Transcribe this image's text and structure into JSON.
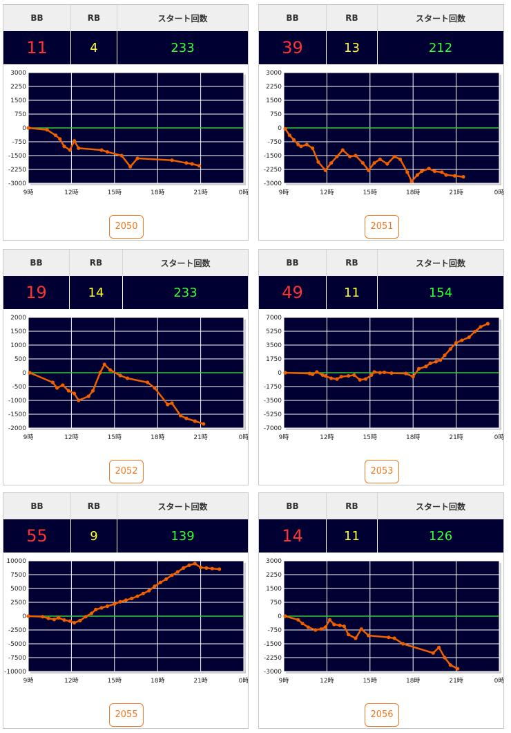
{
  "headers": {
    "bb": "BB",
    "rb": "RB",
    "start": "スタート回数"
  },
  "style": {
    "background": "#000033",
    "grid": "#ffffff",
    "zero_line": "#33cc33",
    "line": "#f06000",
    "bb_color": "#ff3333",
    "rb_color": "#ffff33",
    "start_color": "#33ff33",
    "button_color": "#f07820"
  },
  "machines": [
    {
      "bb": "11",
      "rb": "4",
      "start": "233",
      "machine": "2050"
    },
    {
      "bb": "39",
      "rb": "13",
      "start": "212",
      "machine": "2051"
    },
    {
      "bb": "19",
      "rb": "14",
      "start": "233",
      "machine": "2052"
    },
    {
      "bb": "49",
      "rb": "11",
      "start": "154",
      "machine": "2053"
    },
    {
      "bb": "55",
      "rb": "9",
      "start": "139",
      "machine": "2055"
    },
    {
      "bb": "14",
      "rb": "11",
      "start": "126",
      "machine": "2056"
    }
  ],
  "chart_data": [
    {
      "type": "line",
      "machine": "2050",
      "xlim": [
        9,
        24
      ],
      "ylim": [
        -3000,
        3000
      ],
      "x_ticks": [
        "9時",
        "12時",
        "15時",
        "18時",
        "21時",
        "0時"
      ],
      "y_ticks": [
        "3000",
        "2250",
        "1500",
        "750",
        "0",
        "-750",
        "-1500",
        "-2250",
        "-3000"
      ],
      "x": [
        9.0,
        10.3,
        10.9,
        11.2,
        11.5,
        11.9,
        12.2,
        12.5,
        14.1,
        14.5,
        15.5,
        16.1,
        16.6,
        19.0,
        20.0,
        20.4,
        20.9
      ],
      "y": [
        0,
        -100,
        -400,
        -600,
        -1000,
        -1200,
        -700,
        -1100,
        -1200,
        -1300,
        -1500,
        -2100,
        -1650,
        -1750,
        -1900,
        -1950,
        -2050
      ]
    },
    {
      "type": "line",
      "machine": "2051",
      "xlim": [
        9,
        24
      ],
      "ylim": [
        -3000,
        3000
      ],
      "x_ticks": [
        "9時",
        "12時",
        "15時",
        "18時",
        "21時",
        "0時"
      ],
      "y_ticks": [
        "3000",
        "2250",
        "1500",
        "750",
        "0",
        "-750",
        "-1500",
        "-2250",
        "-3000"
      ],
      "x": [
        9.1,
        9.4,
        9.7,
        10.0,
        10.2,
        10.6,
        11.0,
        11.4,
        11.9,
        12.3,
        12.7,
        13.1,
        13.6,
        14.0,
        14.5,
        14.9,
        15.3,
        15.7,
        16.2,
        16.7,
        17.1,
        17.6,
        17.9,
        18.3,
        18.6,
        19.1,
        19.5,
        20.0,
        20.3,
        20.9,
        21.5
      ],
      "y": [
        -50,
        -400,
        -650,
        -900,
        -1000,
        -900,
        -1100,
        -1850,
        -2300,
        -1900,
        -1550,
        -1200,
        -1550,
        -1500,
        -1900,
        -2300,
        -1900,
        -1700,
        -1950,
        -1550,
        -1700,
        -2400,
        -2900,
        -2550,
        -2350,
        -2200,
        -2350,
        -2400,
        -2550,
        -2600,
        -2650
      ]
    },
    {
      "type": "line",
      "machine": "2052",
      "xlim": [
        9,
        24
      ],
      "ylim": [
        -2000,
        2000
      ],
      "x_ticks": [
        "9時",
        "12時",
        "15時",
        "18時",
        "21時",
        "0時"
      ],
      "y_ticks": [
        "2000",
        "1500",
        "1000",
        "500",
        "0",
        "-500",
        "-1000",
        "-1500",
        "-2000"
      ],
      "x": [
        9.1,
        10.7,
        11.0,
        11.4,
        11.8,
        12.2,
        12.5,
        13.2,
        13.5,
        14.0,
        14.3,
        14.7,
        15.4,
        15.9,
        17.3,
        17.8,
        18.7,
        19.0,
        19.6,
        20.0,
        20.6,
        21.2
      ],
      "y": [
        0,
        -350,
        -550,
        -450,
        -650,
        -750,
        -1000,
        -850,
        -650,
        0,
        300,
        100,
        -100,
        -200,
        -350,
        -550,
        -1150,
        -1100,
        -1550,
        -1650,
        -1750,
        -1850
      ]
    },
    {
      "type": "line",
      "machine": "2053",
      "xlim": [
        9,
        24
      ],
      "ylim": [
        -7000,
        7000
      ],
      "x_ticks": [
        "9時",
        "12時",
        "15時",
        "18時",
        "21時",
        "0時"
      ],
      "y_ticks": [
        "7000",
        "5250",
        "3500",
        "1750",
        "0",
        "-1750",
        "-3500",
        "-5250",
        "-7000"
      ],
      "x": [
        9.1,
        10.8,
        11.0,
        11.3,
        11.7,
        11.9,
        12.3,
        12.7,
        13.0,
        13.5,
        13.9,
        14.3,
        14.7,
        15.1,
        15.3,
        15.7,
        16.0,
        16.5,
        17.5,
        18.0,
        18.4,
        18.9,
        19.2,
        19.6,
        19.9,
        20.2,
        20.6,
        21.0,
        21.4,
        21.9,
        22.3,
        22.7,
        23.2
      ],
      "y": [
        0,
        -100,
        -200,
        100,
        -300,
        -400,
        -700,
        -800,
        -500,
        -400,
        -300,
        -900,
        -800,
        -300,
        100,
        0,
        50,
        -50,
        -100,
        -500,
        500,
        800,
        1200,
        1400,
        1600,
        2200,
        3000,
        3800,
        4100,
        4500,
        5200,
        5800,
        6200
      ]
    },
    {
      "type": "line",
      "machine": "2055",
      "xlim": [
        9,
        24
      ],
      "ylim": [
        -10000,
        10000
      ],
      "x_ticks": [
        "9時",
        "12時",
        "15時",
        "18時",
        "21時",
        "0時"
      ],
      "y_ticks": [
        "10000",
        "7500",
        "5000",
        "2500",
        "0",
        "-2500",
        "-5000",
        "-7500",
        "-10000"
      ],
      "x": [
        9.0,
        10.0,
        10.4,
        10.8,
        11.1,
        11.5,
        11.9,
        12.2,
        12.6,
        13.0,
        13.4,
        13.7,
        14.1,
        14.5,
        15.0,
        15.4,
        15.8,
        16.2,
        16.6,
        17.0,
        17.4,
        17.8,
        18.2,
        18.6,
        19.0,
        19.4,
        19.8,
        20.2,
        20.6,
        21.0,
        21.4,
        21.8,
        22.3
      ],
      "y": [
        0,
        -100,
        -400,
        -600,
        -300,
        -700,
        -900,
        -1200,
        -800,
        -100,
        500,
        1200,
        1500,
        1800,
        2200,
        2600,
        2900,
        3200,
        3600,
        4100,
        4600,
        5400,
        6100,
        6700,
        7400,
        8000,
        8700,
        9200,
        9500,
        8800,
        8700,
        8600,
        8500
      ]
    },
    {
      "type": "line",
      "machine": "2056",
      "xlim": [
        9,
        24
      ],
      "ylim": [
        -3000,
        3000
      ],
      "x_ticks": [
        "9時",
        "12時",
        "15時",
        "18時",
        "21時",
        "0時"
      ],
      "y_ticks": [
        "3000",
        "2250",
        "1500",
        "750",
        "0",
        "-750",
        "-1500",
        "-2250",
        "-3000"
      ],
      "x": [
        9.1,
        10.0,
        10.3,
        10.7,
        11.2,
        11.6,
        11.9,
        12.2,
        12.5,
        12.9,
        13.2,
        13.5,
        14.0,
        14.4,
        14.9,
        16.3,
        16.7,
        17.3,
        19.4,
        19.8,
        20.2,
        20.6,
        21.1
      ],
      "y": [
        0,
        -200,
        -400,
        -600,
        -750,
        -700,
        -600,
        -200,
        -450,
        -500,
        -550,
        -1000,
        -1200,
        -700,
        -1050,
        -1150,
        -1200,
        -1500,
        -2000,
        -1700,
        -2250,
        -2650,
        -2850
      ]
    }
  ]
}
